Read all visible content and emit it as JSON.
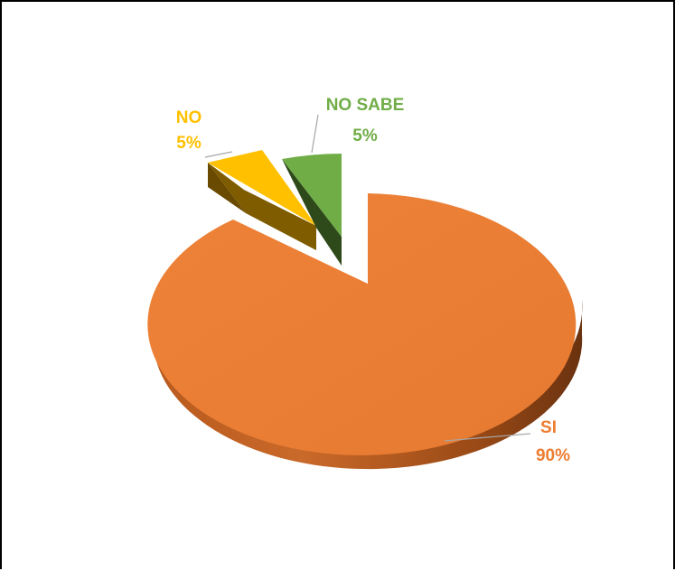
{
  "chart_data": {
    "type": "pie",
    "style": "3d-exploded",
    "slices": [
      {
        "category": "SI",
        "percent_label": "90%",
        "value": 90,
        "color": "#ED7D31"
      },
      {
        "category": "NO",
        "percent_label": "5%",
        "value": 5,
        "color": "#FFC000"
      },
      {
        "category": "NO SABE",
        "percent_label": "5%",
        "value": 5,
        "color": "#70AD47"
      }
    ],
    "legend": "none"
  }
}
